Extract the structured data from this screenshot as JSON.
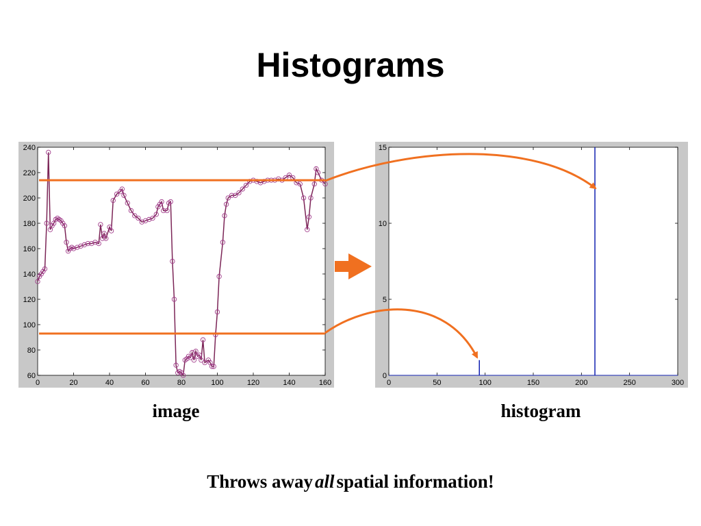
{
  "title": "Histograms",
  "captions": [
    "image",
    "histogram"
  ],
  "footer": {
    "before": "Throws away",
    "emphasis": "all",
    "after": "spatial information!"
  },
  "chart_data": [
    {
      "type": "line",
      "x": [
        0,
        1,
        2,
        3,
        4,
        5,
        6,
        7,
        8,
        9,
        10,
        11,
        12,
        13,
        14,
        15,
        16,
        17,
        18,
        19,
        20,
        22,
        24,
        26,
        28,
        30,
        32,
        34,
        35,
        36,
        37,
        38,
        40,
        41,
        42,
        44,
        46,
        47,
        48,
        50,
        52,
        54,
        56,
        58,
        60,
        62,
        64,
        66,
        67,
        68,
        69,
        70,
        72,
        73,
        74,
        75,
        76,
        77,
        78,
        79,
        80,
        81,
        82,
        83,
        84,
        85,
        86,
        87,
        88,
        89,
        90,
        91,
        92,
        93,
        95,
        96,
        97,
        98,
        99,
        100,
        101,
        103,
        104,
        105,
        106,
        108,
        110,
        112,
        114,
        116,
        118,
        120,
        122,
        124,
        126,
        128,
        130,
        132,
        134,
        136,
        138,
        140,
        142,
        144,
        146,
        148,
        150,
        151,
        152,
        154,
        155,
        156,
        158,
        160
      ],
      "series": [
        {
          "color": "#7b2456",
          "values": [
            134,
            138,
            140,
            142,
            144,
            180,
            236,
            175,
            178,
            180,
            183,
            184,
            183,
            182,
            180,
            178,
            165,
            158,
            160,
            161,
            160,
            161,
            162,
            163,
            164,
            164,
            165,
            164,
            179,
            168,
            172,
            168,
            177,
            174,
            198,
            203,
            205,
            207,
            202,
            196,
            190,
            186,
            184,
            181,
            182,
            183,
            184,
            187,
            193,
            195,
            197,
            190,
            190,
            196,
            197,
            150,
            120,
            68,
            62,
            63,
            62,
            60,
            72,
            73,
            75,
            74,
            78,
            72,
            79,
            75,
            76,
            72,
            88,
            70,
            72,
            70,
            67,
            67,
            92,
            110,
            138,
            165,
            186,
            195,
            200,
            202,
            202,
            204,
            207,
            210,
            213,
            214,
            213,
            212,
            213,
            214,
            214,
            214,
            215,
            214,
            216,
            218,
            216,
            212,
            211,
            200,
            175,
            185,
            200,
            211,
            223,
            220,
            214,
            211
          ]
        }
      ],
      "hlines": [
        214,
        93
      ],
      "xlim": [
        0,
        160
      ],
      "xticks": [
        0,
        20,
        40,
        60,
        80,
        100,
        120,
        140,
        160
      ],
      "ylim": [
        60,
        240
      ],
      "yticks": [
        60,
        80,
        100,
        120,
        140,
        160,
        180,
        200,
        220,
        240
      ]
    },
    {
      "type": "stem",
      "x": [
        94,
        214
      ],
      "series": [
        {
          "color": "#1020b0",
          "values": [
            1,
            15
          ]
        }
      ],
      "xlim": [
        0,
        300
      ],
      "xticks": [
        0,
        50,
        100,
        150,
        200,
        250,
        300
      ],
      "ylim": [
        0,
        15
      ],
      "yticks": [
        0,
        5,
        10,
        15
      ]
    }
  ]
}
